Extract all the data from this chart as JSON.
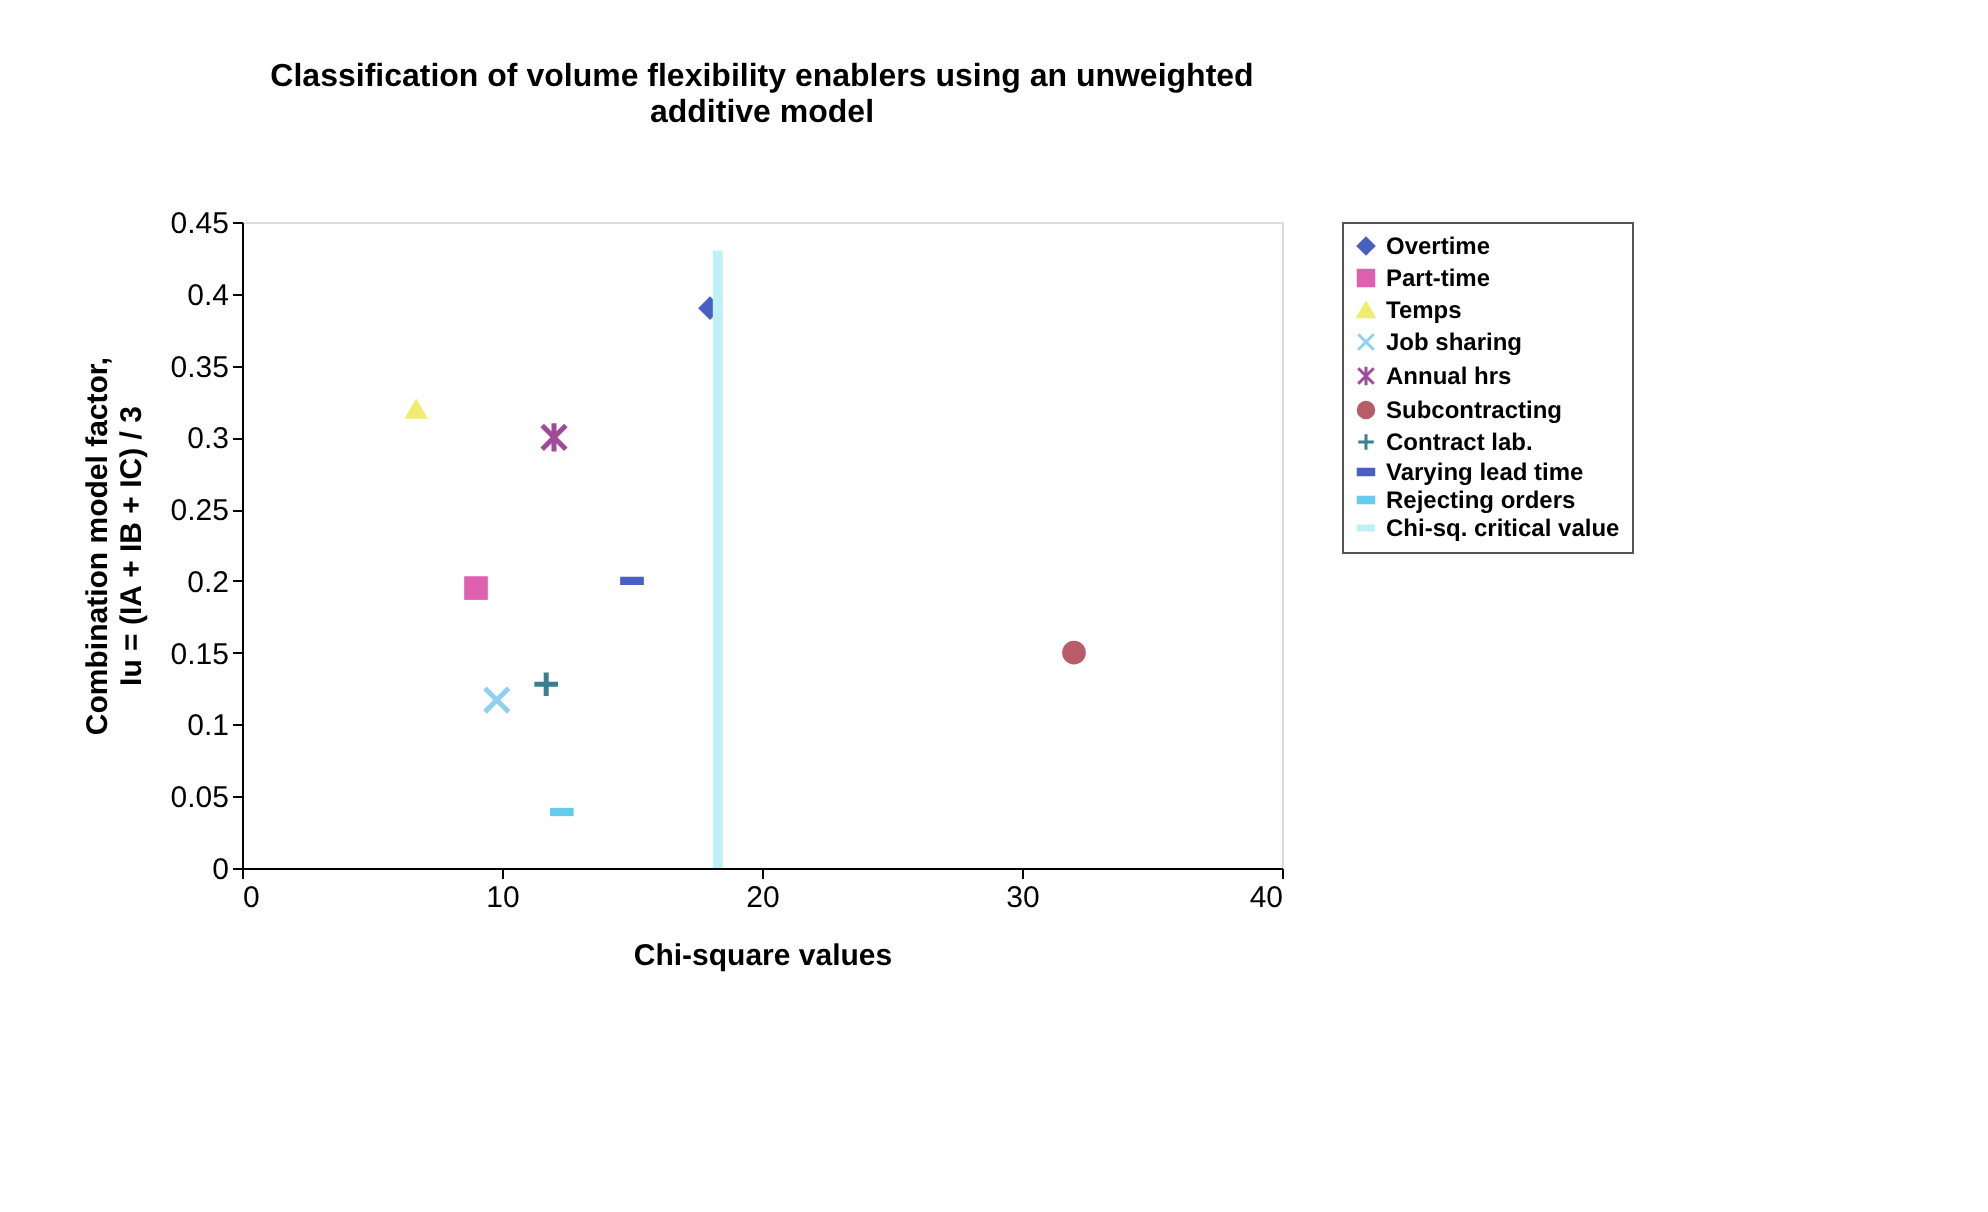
{
  "chart_data": {
    "type": "scatter",
    "title": [
      "Classification of volume flexibility enablers using an unweighted",
      "additive model"
    ],
    "xlabel": "Chi-square values",
    "ylabel": [
      "Combination model factor,",
      "Iu = (IA + IB + IC) / 3"
    ],
    "xlim": [
      0,
      40
    ],
    "xticks": [
      0,
      10,
      20,
      30,
      40
    ],
    "ylim": [
      0,
      0.45
    ],
    "yticks": [
      0,
      0.05,
      0.1,
      0.15,
      0.2,
      0.25,
      0.3,
      0.35,
      0.4,
      0.45
    ],
    "grid": false,
    "legend": "right",
    "series": [
      {
        "name": "Overtime",
        "color": "#4a5fc1",
        "marker": "diamond",
        "x": [
          18
        ],
        "values": [
          0.39
        ]
      },
      {
        "name": "Part-time",
        "color": "#e060b0",
        "marker": "square",
        "x": [
          9
        ],
        "values": [
          0.195
        ]
      },
      {
        "name": "Temps",
        "color": "#f0ec70",
        "marker": "triangle",
        "x": [
          6.7
        ],
        "values": [
          0.32
        ]
      },
      {
        "name": "Job sharing",
        "color": "#8fd0f0",
        "marker": "x",
        "x": [
          9.8
        ],
        "values": [
          0.117
        ]
      },
      {
        "name": "Annual hrs",
        "color": "#a04a9a",
        "marker": "cross",
        "x": [
          12
        ],
        "values": [
          0.3
        ]
      },
      {
        "name": "Subcontracting",
        "color": "#b85c6a",
        "marker": "circle",
        "x": [
          32
        ],
        "values": [
          0.15
        ]
      },
      {
        "name": "Contract lab.",
        "color": "#3a7f8f",
        "marker": "plus",
        "x": [
          11.7
        ],
        "values": [
          0.128
        ]
      },
      {
        "name": "Varying lead time",
        "color": "#4a5fc1",
        "x": [
          15
        ],
        "values": [
          0.2
        ]
      },
      {
        "name": "Rejecting orders",
        "color": "#66ccee",
        "x": [
          12.3
        ],
        "values": [
          0.039
        ]
      },
      {
        "name": "Chi-sq. critical value",
        "color": "#bff0f6",
        "type": "line",
        "marker": "none",
        "x": [
          18.3,
          18.3
        ],
        "values": [
          0,
          0.43
        ]
      }
    ]
  }
}
